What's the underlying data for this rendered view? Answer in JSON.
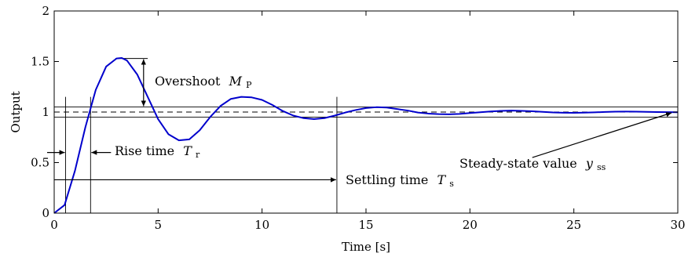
{
  "chart_data": {
    "type": "line",
    "title": "",
    "xlabel": "Time [s]",
    "ylabel": "Output",
    "xlim": [
      0,
      30
    ],
    "ylim": [
      0,
      2
    ],
    "xticks": [
      0,
      5,
      10,
      15,
      20,
      25,
      30
    ],
    "yticks": [
      0,
      0.5,
      1,
      1.5,
      2
    ],
    "xtick_labels": [
      "0",
      "5",
      "10",
      "15",
      "20",
      "25",
      "30"
    ],
    "ytick_labels": [
      "0",
      "0.5",
      "1",
      "1.5",
      "2"
    ],
    "grid": false,
    "series": [
      {
        "color": "#0000cc",
        "x": [
          0,
          0.5,
          1,
          1.5,
          2,
          2.5,
          3,
          3.25,
          3.5,
          4,
          4.5,
          5,
          5.5,
          6,
          6.5,
          7,
          7.5,
          8,
          8.5,
          9,
          9.5,
          10,
          10.5,
          11,
          11.5,
          12,
          12.5,
          13,
          13.5,
          14,
          14.5,
          15,
          15.5,
          16,
          16.5,
          17,
          17.5,
          18,
          18.5,
          19,
          19.5,
          20,
          20.5,
          21,
          21.5,
          22,
          22.5,
          23,
          23.5,
          24,
          24.5,
          25,
          25.5,
          26,
          26.5,
          27,
          27.5,
          28,
          28.5,
          29,
          29.5,
          30
        ],
        "values": [
          0,
          0.08,
          0.42,
          0.85,
          1.22,
          1.45,
          1.53,
          1.535,
          1.51,
          1.37,
          1.15,
          0.93,
          0.78,
          0.72,
          0.73,
          0.82,
          0.95,
          1.06,
          1.13,
          1.15,
          1.145,
          1.12,
          1.07,
          1.01,
          0.965,
          0.94,
          0.93,
          0.94,
          0.965,
          0.995,
          1.02,
          1.04,
          1.048,
          1.045,
          1.03,
          1.015,
          0.995,
          0.985,
          0.98,
          0.978,
          0.982,
          0.99,
          0.998,
          1.006,
          1.012,
          1.015,
          1.012,
          1.008,
          1.002,
          0.996,
          0.993,
          0.992,
          0.994,
          0.997,
          1.001,
          1.004,
          1.005,
          1.004,
          1.002,
          1.0,
          0.999,
          0.998
        ]
      }
    ],
    "reference_lines": {
      "steady_state": 1,
      "upper_band": 1.05,
      "lower_band": 0.95,
      "peak": 1.53
    },
    "markers": {
      "delay_time": 0.55,
      "rise_time": 1.75,
      "settling_time": 13.6,
      "peak_time": 3.25
    },
    "annotations": {
      "overshoot_label": "Overshoot",
      "overshoot_symbol": "M",
      "overshoot_sub": "P",
      "rise_label": "Rise time",
      "rise_symbol": "T",
      "rise_sub": "r",
      "settling_label": "Settling time",
      "settling_symbol": "T",
      "settling_sub": "s",
      "steady_label": "Steady-state value",
      "steady_symbol": "y",
      "steady_sub": "ss"
    }
  }
}
